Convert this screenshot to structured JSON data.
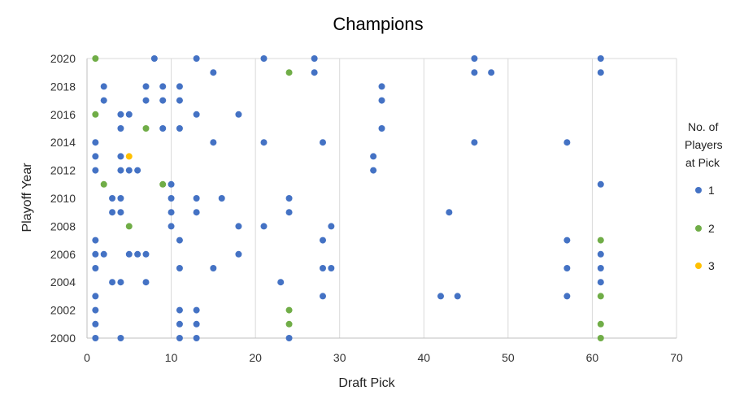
{
  "chart_data": {
    "type": "scatter",
    "title": "Champions",
    "xlabel": "Draft Pick",
    "ylabel": "Playoff Year",
    "xlim": [
      0,
      70
    ],
    "ylim": [
      2000,
      2020
    ],
    "x_ticks": [
      0,
      10,
      20,
      30,
      40,
      50,
      60,
      70
    ],
    "y_ticks": [
      2000,
      2002,
      2004,
      2006,
      2008,
      2010,
      2012,
      2014,
      2016,
      2018,
      2020
    ],
    "grid": "vertical",
    "legend": {
      "title_lines": [
        "No. of",
        "Players",
        "at Pick"
      ],
      "position": "right"
    },
    "series": [
      {
        "name": "1",
        "color": "#4472C4",
        "points": [
          [
            1,
            2000
          ],
          [
            4,
            2000
          ],
          [
            11,
            2000
          ],
          [
            13,
            2000
          ],
          [
            24,
            2000
          ],
          [
            1,
            2001
          ],
          [
            11,
            2001
          ],
          [
            13,
            2001
          ],
          [
            1,
            2002
          ],
          [
            11,
            2002
          ],
          [
            13,
            2002
          ],
          [
            1,
            2003
          ],
          [
            28,
            2003
          ],
          [
            42,
            2003
          ],
          [
            44,
            2003
          ],
          [
            57,
            2003
          ],
          [
            3,
            2004
          ],
          [
            4,
            2004
          ],
          [
            7,
            2004
          ],
          [
            23,
            2004
          ],
          [
            61,
            2004
          ],
          [
            1,
            2005
          ],
          [
            11,
            2005
          ],
          [
            15,
            2005
          ],
          [
            28,
            2005
          ],
          [
            29,
            2005
          ],
          [
            57,
            2005
          ],
          [
            61,
            2005
          ],
          [
            1,
            2006
          ],
          [
            2,
            2006
          ],
          [
            5,
            2006
          ],
          [
            6,
            2006
          ],
          [
            7,
            2006
          ],
          [
            18,
            2006
          ],
          [
            61,
            2006
          ],
          [
            1,
            2007
          ],
          [
            11,
            2007
          ],
          [
            28,
            2007
          ],
          [
            57,
            2007
          ],
          [
            10,
            2008
          ],
          [
            18,
            2008
          ],
          [
            21,
            2008
          ],
          [
            29,
            2008
          ],
          [
            3,
            2009
          ],
          [
            4,
            2009
          ],
          [
            10,
            2009
          ],
          [
            13,
            2009
          ],
          [
            24,
            2009
          ],
          [
            43,
            2009
          ],
          [
            3,
            2010
          ],
          [
            4,
            2010
          ],
          [
            10,
            2010
          ],
          [
            13,
            2010
          ],
          [
            16,
            2010
          ],
          [
            24,
            2010
          ],
          [
            10,
            2011
          ],
          [
            61,
            2011
          ],
          [
            1,
            2012
          ],
          [
            4,
            2012
          ],
          [
            5,
            2012
          ],
          [
            6,
            2012
          ],
          [
            34,
            2012
          ],
          [
            1,
            2013
          ],
          [
            4,
            2013
          ],
          [
            34,
            2013
          ],
          [
            1,
            2014
          ],
          [
            15,
            2014
          ],
          [
            21,
            2014
          ],
          [
            28,
            2014
          ],
          [
            46,
            2014
          ],
          [
            57,
            2014
          ],
          [
            4,
            2015
          ],
          [
            9,
            2015
          ],
          [
            11,
            2015
          ],
          [
            35,
            2015
          ],
          [
            4,
            2016
          ],
          [
            5,
            2016
          ],
          [
            13,
            2016
          ],
          [
            18,
            2016
          ],
          [
            2,
            2017
          ],
          [
            7,
            2017
          ],
          [
            9,
            2017
          ],
          [
            11,
            2017
          ],
          [
            35,
            2017
          ],
          [
            2,
            2018
          ],
          [
            7,
            2018
          ],
          [
            9,
            2018
          ],
          [
            11,
            2018
          ],
          [
            35,
            2018
          ],
          [
            15,
            2019
          ],
          [
            27,
            2019
          ],
          [
            46,
            2019
          ],
          [
            48,
            2019
          ],
          [
            61,
            2019
          ],
          [
            8,
            2020
          ],
          [
            13,
            2020
          ],
          [
            21,
            2020
          ],
          [
            27,
            2020
          ],
          [
            46,
            2020
          ],
          [
            61,
            2020
          ]
        ]
      },
      {
        "name": "2",
        "color": "#70AD47",
        "points": [
          [
            61,
            2000
          ],
          [
            24,
            2001
          ],
          [
            61,
            2001
          ],
          [
            24,
            2002
          ],
          [
            61,
            2003
          ],
          [
            61,
            2007
          ],
          [
            5,
            2008
          ],
          [
            2,
            2011
          ],
          [
            9,
            2011
          ],
          [
            7,
            2015
          ],
          [
            1,
            2016
          ],
          [
            24,
            2019
          ],
          [
            1,
            2020
          ]
        ]
      },
      {
        "name": "3",
        "color": "#FFC000",
        "points": [
          [
            5,
            2013
          ]
        ]
      }
    ]
  }
}
